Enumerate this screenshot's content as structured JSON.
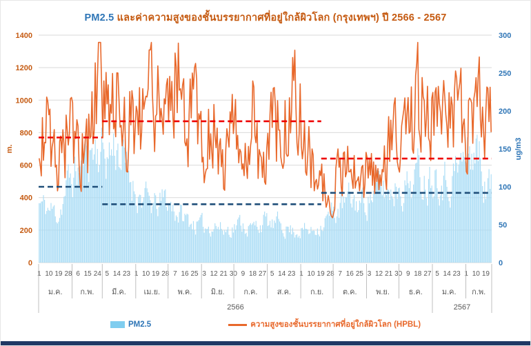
{
  "title": {
    "part1": "PM2.5",
    "part2": " และค่าความสูงของชั้นบรรยากาศที่อยู่ใกล้ผิวโลก (กรุงเทพฯ) ปี 2566 - 2567",
    "part1_color": "#2E75B6",
    "part2_color": "#C55A11"
  },
  "legend": {
    "pm25": "PM2.5",
    "hpbl": "ความสูงของชั้นบรรยากาศที่อยู่ใกล้ผิวโลก (HPBL)",
    "pm25_color": "#2E75B6",
    "hpbl_color": "#E8682B"
  },
  "chart_data": {
    "type": "bar",
    "subtype": "combo-bar-line-daily",
    "title": "PM2.5 และค่าความสูงของชั้นบรรยากาศที่อยู่ใกล้ผิวโลก (กรุงเทพฯ) ปี 2566 - 2567",
    "grid": "on",
    "legend_position": "bottom",
    "left_axis": {
      "label": "m.",
      "min": 0,
      "max": 1400,
      "step": 200,
      "color": "#C55A11"
    },
    "right_axis": {
      "label": "ug/m3",
      "min": 0,
      "max": 300,
      "step": 50,
      "color": "#2E75B6"
    },
    "x_axis": {
      "total_days": 420,
      "tick_days": [
        1,
        10,
        19,
        28,
        37,
        46,
        55,
        64,
        73,
        82,
        91,
        100,
        109,
        118,
        127,
        136,
        145,
        154,
        163,
        172,
        181,
        190,
        199,
        208,
        217,
        226,
        235,
        244,
        253,
        262,
        271,
        280,
        289,
        298,
        307,
        316,
        325,
        334,
        343,
        352,
        361,
        370,
        379,
        388,
        397,
        406,
        415
      ],
      "tick_labels": [
        "1",
        "10",
        "19",
        "28",
        "6",
        "15",
        "24",
        "5",
        "14",
        "23",
        "1",
        "10",
        "19",
        "28",
        "7",
        "16",
        "25",
        "3",
        "12",
        "21",
        "30",
        "9",
        "18",
        "27",
        "5",
        "14",
        "23",
        "1",
        "10",
        "19",
        "28",
        "7",
        "16",
        "25",
        "3",
        "12",
        "21",
        "30",
        "9",
        "18",
        "27",
        "5",
        "14",
        "23",
        "1",
        "10",
        "19"
      ],
      "months": [
        {
          "label": "ม.ค.",
          "days": 31
        },
        {
          "label": "ก.พ.",
          "days": 28
        },
        {
          "label": "มี.ค.",
          "days": 31
        },
        {
          "label": "เม.ย.",
          "days": 30
        },
        {
          "label": "พ.ค.",
          "days": 31
        },
        {
          "label": "มิ.ย.",
          "days": 30
        },
        {
          "label": "ก.ค.",
          "days": 31
        },
        {
          "label": "ส.ค.",
          "days": 31
        },
        {
          "label": "ก.ย.",
          "days": 30
        },
        {
          "label": "ต.ค.",
          "days": 31
        },
        {
          "label": "พ.ย.",
          "days": 30
        },
        {
          "label": "ธ.ค.",
          "days": 31
        },
        {
          "label": "ม.ค.",
          "days": 31
        },
        {
          "label": "ก.พ.",
          "days": 24
        }
      ],
      "years": [
        {
          "label": "2566",
          "days": 365
        },
        {
          "label": "2567",
          "days": 55
        }
      ]
    },
    "series": [
      {
        "name": "PM2.5",
        "type": "bar",
        "axis": "right",
        "unit": "ug/m3",
        "color": "#A9DCF5",
        "control_values": [
          78,
          70,
          64,
          105,
          122,
          148,
          152,
          142,
          158,
          120,
          95,
          82,
          72,
          84,
          70,
          58,
          52,
          46,
          52,
          42,
          48,
          52,
          44,
          56,
          48,
          52,
          42,
          44,
          40,
          52,
          62,
          72,
          82,
          78,
          88,
          98,
          92,
          106,
          102,
          118,
          112,
          128,
          108,
          122,
          138,
          155,
          100
        ]
      },
      {
        "name": "ความสูงของชั้นบรรยากาศที่อยู่ใกล้ผิวโลก (HPBL)",
        "type": "line",
        "axis": "left",
        "unit": "m",
        "color": "#E8682B",
        "control_values": [
          700,
          820,
          640,
          780,
          760,
          700,
          1200,
          900,
          1000,
          860,
          850,
          950,
          1050,
          900,
          1250,
          800,
          950,
          700,
          850,
          550,
          800,
          600,
          900,
          450,
          950,
          750,
          1050,
          850,
          600,
          500,
          420,
          550,
          650,
          380,
          600,
          500,
          700,
          800,
          750,
          1050,
          850,
          900,
          800,
          1000,
          850,
          950,
          920
        ]
      }
    ],
    "mean_segments": {
      "hpbl": [
        {
          "start_day": 1,
          "end_day": 59,
          "value": 770
        },
        {
          "start_day": 60,
          "end_day": 262,
          "value": 870
        },
        {
          "start_day": 263,
          "end_day": 420,
          "value": 640
        }
      ],
      "pm25": [
        {
          "start_day": 1,
          "end_day": 59,
          "value": 100
        },
        {
          "start_day": 60,
          "end_day": 262,
          "value": 77
        },
        {
          "start_day": 263,
          "end_day": 420,
          "value": 92
        }
      ]
    },
    "styles": {
      "grid": "#D9D9D9",
      "separator": "#BFBFBF",
      "pm25_mean_dash": "#1F4E79",
      "hpbl_mean_dash": "#EE0000",
      "bottom_strip": "#1F3864"
    },
    "render": {
      "seed": 11,
      "bar_noise": 0.26,
      "line_noise": 0.27
    }
  }
}
